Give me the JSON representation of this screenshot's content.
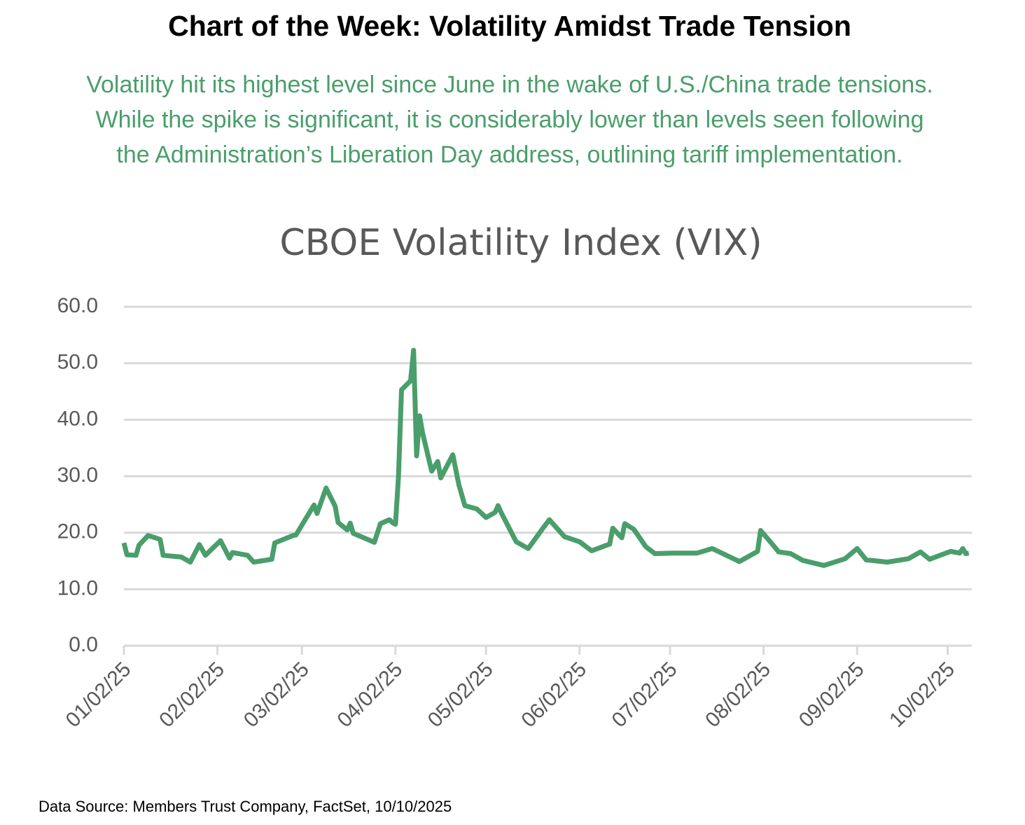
{
  "chart_data": {
    "type": "line",
    "title": "Chart of the Week: Volatility Amidst Trade Tension",
    "subtitle": [
      "Volatility hit its highest level since June in the wake of U.S./China trade tensions.",
      "While the spike is significant, it is considerably lower than levels seen following",
      "the Administration’s Liberation Day address, outlining tariff implementation."
    ],
    "chart_title": "CBOE Volatility Index (VIX)",
    "source": "Data Source: Members Trust Company, FactSet, 10/10/2025",
    "x": [
      "01/02/25",
      "01/03/25",
      "01/06/25",
      "01/07/25",
      "01/10/25",
      "01/13/25",
      "01/14/25",
      "01/15/25",
      "01/21/25",
      "01/24/25",
      "01/27/25",
      "01/29/25",
      "02/03/25",
      "02/06/25",
      "02/07/25",
      "02/12/25",
      "02/14/25",
      "02/20/25",
      "02/21/25",
      "02/27/25",
      "02/28/25",
      "03/06/25",
      "03/07/25",
      "03/10/25",
      "03/13/25",
      "03/14/25",
      "03/17/25",
      "03/18/25",
      "03/19/25",
      "03/26/25",
      "03/28/25",
      "03/31/25",
      "04/01/25",
      "04/02/25",
      "04/03/25",
      "04/04/25",
      "04/07/25",
      "04/08/25",
      "04/09/25",
      "04/10/25",
      "04/11/25",
      "04/14/25",
      "04/16/25",
      "04/17/25",
      "04/21/25",
      "04/23/25",
      "04/25/25",
      "04/29/25",
      "05/02/25",
      "05/05/25",
      "05/06/25",
      "05/07/25",
      "05/12/25",
      "05/16/25",
      "05/21/25",
      "05/23/25",
      "05/28/25",
      "06/02/25",
      "06/06/25",
      "06/12/25",
      "06/13/25",
      "06/16/25",
      "06/17/25",
      "06/20/25",
      "06/24/25",
      "06/27/25",
      "07/03/25",
      "07/11/25",
      "07/16/25",
      "07/25/25",
      "07/31/25",
      "08/01/25",
      "08/05/25",
      "08/07/25",
      "08/11/25",
      "08/15/25",
      "08/22/25",
      "08/29/25",
      "09/02/25",
      "09/05/25",
      "09/12/25",
      "09/19/25",
      "09/23/25",
      "09/26/25",
      "10/01/25",
      "10/03/25",
      "10/06/25",
      "10/07/25",
      "10/08/25",
      "10/09/25"
    ],
    "series": [
      {
        "name": "VIX",
        "color": "#4a9e6b",
        "values": [
          18.2,
          16.1,
          16.0,
          17.8,
          19.5,
          19.0,
          18.8,
          16.0,
          15.7,
          14.8,
          17.9,
          16.0,
          18.6,
          15.5,
          16.5,
          16.0,
          14.8,
          15.3,
          18.2,
          19.5,
          19.6,
          24.9,
          23.4,
          27.9,
          24.7,
          21.8,
          20.5,
          21.7,
          19.9,
          18.3,
          21.6,
          22.3,
          21.8,
          21.5,
          30.0,
          45.3,
          46.9,
          52.3,
          33.6,
          40.7,
          37.6,
          30.9,
          32.6,
          29.7,
          33.8,
          28.5,
          24.8,
          24.2,
          22.7,
          23.6,
          24.8,
          23.6,
          18.4,
          17.2,
          20.9,
          22.3,
          19.3,
          18.4,
          16.8,
          18.0,
          20.8,
          19.1,
          21.6,
          20.6,
          17.5,
          16.3,
          16.4,
          16.4,
          17.2,
          14.9,
          16.7,
          20.4,
          17.9,
          16.6,
          16.3,
          15.1,
          14.2,
          15.4,
          17.2,
          15.2,
          14.8,
          15.4,
          16.6,
          15.3,
          16.3,
          16.7,
          16.4,
          17.2,
          16.3,
          16.4
        ]
      }
    ],
    "xlim": [
      "01/02/25",
      "10/10/25"
    ],
    "xticks": [
      "01/02/25",
      "02/02/25",
      "03/02/25",
      "04/02/25",
      "05/02/25",
      "06/02/25",
      "07/02/25",
      "08/02/25",
      "09/02/25",
      "10/02/25"
    ],
    "ylim": [
      0,
      60
    ],
    "yticks": [
      {
        "value": 0,
        "label": "0.0"
      },
      {
        "value": 10,
        "label": "10.0"
      },
      {
        "value": 20,
        "label": "20.0"
      },
      {
        "value": 30,
        "label": "30.0"
      },
      {
        "value": 40,
        "label": "40.0"
      },
      {
        "value": 50,
        "label": "50.0"
      },
      {
        "value": 60,
        "label": "60.0"
      }
    ],
    "grid": true
  }
}
